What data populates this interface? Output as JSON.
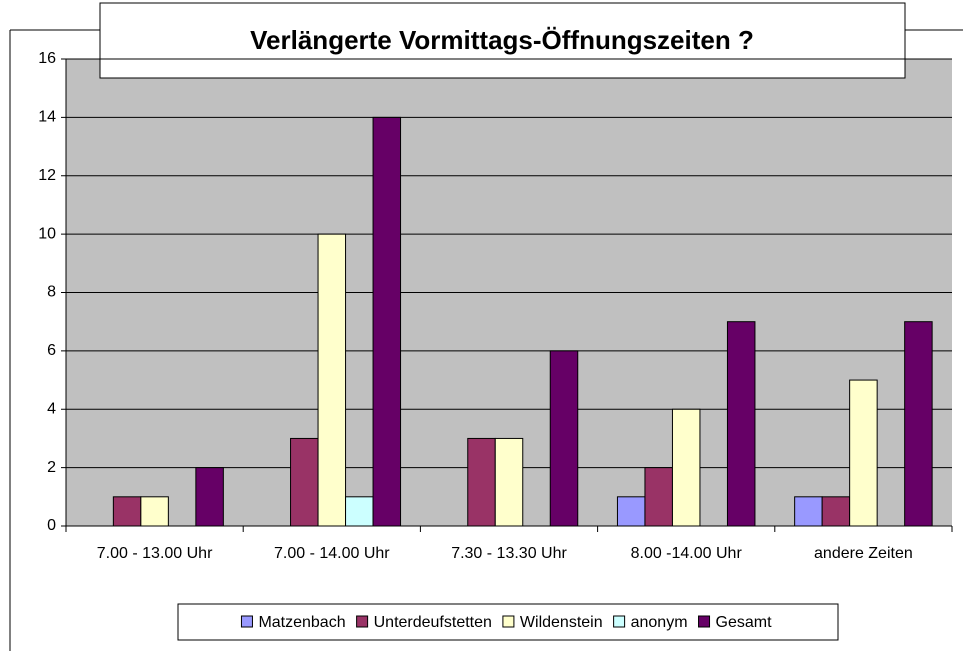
{
  "chart_data": {
    "type": "bar",
    "title": "Verlängerte Vormittags-Öffnungszeiten ?",
    "categories": [
      "7.00 - 13.00 Uhr",
      "7.00 - 14.00 Uhr",
      "7.30 - 13.30 Uhr",
      "8.00 -14.00 Uhr",
      "andere Zeiten"
    ],
    "series": [
      {
        "name": "Matzenbach",
        "color": "#9999ff",
        "values": [
          0,
          0,
          0,
          1,
          1
        ]
      },
      {
        "name": "Unterdeufstetten",
        "color": "#993366",
        "values": [
          1,
          3,
          3,
          2,
          1
        ]
      },
      {
        "name": "Wildenstein",
        "color": "#ffffcc",
        "values": [
          1,
          10,
          3,
          4,
          5
        ]
      },
      {
        "name": "anonym",
        "color": "#ccffff",
        "values": [
          0,
          1,
          0,
          0,
          0
        ]
      },
      {
        "name": "Gesamt",
        "color": "#660066",
        "values": [
          2,
          14,
          6,
          7,
          7
        ]
      }
    ],
    "ylim": [
      0,
      16
    ],
    "yticks": [
      0,
      2,
      4,
      6,
      8,
      10,
      12,
      14,
      16
    ],
    "grid": true,
    "legend": "bottom"
  }
}
